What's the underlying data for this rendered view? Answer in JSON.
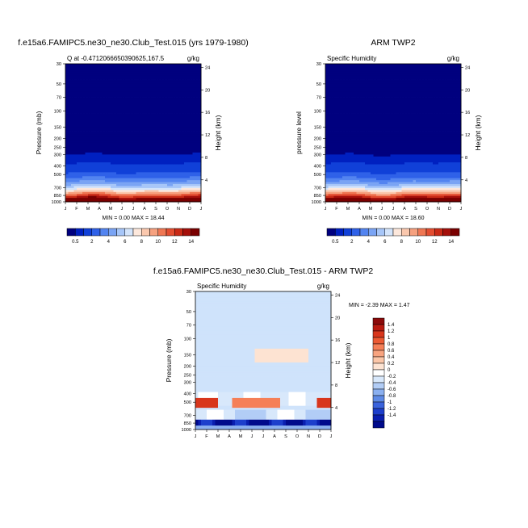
{
  "months": [
    "J",
    "F",
    "M",
    "A",
    "M",
    "J",
    "J",
    "A",
    "S",
    "O",
    "N",
    "D",
    "J"
  ],
  "chart_data": [
    {
      "type": "heatmap",
      "title": "f.e15a6.FAMIPC5.ne30_ne30.Club_Test.015 (yrs 1979-1980)",
      "subtitle_left": "Q at -0.4712066650390625,167.5",
      "units": "g/kg",
      "ylabel": "Pressure (mb)",
      "y2label": "Height (km)",
      "yticks": [
        "30",
        "50",
        "70",
        "100",
        "150",
        "200",
        "250",
        "300",
        "400",
        "500",
        "700",
        "850",
        "1000"
      ],
      "y2ticks": [
        "24",
        "20",
        "16",
        "12",
        "8",
        "4"
      ],
      "minmax": "MIN =   0.00 MAX =  18.44",
      "colorbar_labels": [
        "0.5",
        "2",
        "4",
        "6",
        "8",
        "10",
        "12",
        "14"
      ],
      "levels": [
        0.5,
        1,
        2,
        3,
        4,
        5,
        6,
        7,
        8,
        9,
        10,
        11,
        12,
        13,
        14
      ],
      "colors": [
        "#00007f",
        "#0020c0",
        "#1040d8",
        "#2f61e8",
        "#5384f0",
        "#7aa4f4",
        "#a7c6f8",
        "#d3e4fb",
        "#fde8dc",
        "#fac8ae",
        "#f6a17f",
        "#ef7753",
        "#e34d30",
        "#c92a16",
        "#a50f0a",
        "#7a0000"
      ]
    },
    {
      "type": "heatmap",
      "title": "ARM TWP2",
      "subtitle_left": "Specific Humidity",
      "units": "g/kg",
      "ylabel": "pressure level",
      "y2label": "Height (km)",
      "yticks": [
        "30",
        "50",
        "70",
        "100",
        "150",
        "200",
        "250",
        "300",
        "400",
        "500",
        "700",
        "850",
        "1000"
      ],
      "y2ticks": [
        "24",
        "20",
        "16",
        "12",
        "8",
        "4"
      ],
      "minmax": "MIN =   0.00 MAX =  18.60",
      "colorbar_labels": [
        "0.5",
        "2",
        "4",
        "6",
        "8",
        "10",
        "12",
        "14"
      ]
    },
    {
      "type": "heatmap",
      "title": "f.e15a6.FAMIPC5.ne30_ne30.Club_Test.015 - ARM TWP2",
      "subtitle_left": "Specific Humidity",
      "units": "g/kg",
      "ylabel": "Pressure (mb)",
      "y2label": "Height (km)",
      "yticks": [
        "30",
        "50",
        "70",
        "100",
        "150",
        "200",
        "250",
        "300",
        "400",
        "500",
        "700",
        "850",
        "1000"
      ],
      "y2ticks": [
        "24",
        "20",
        "16",
        "12",
        "8",
        "4"
      ],
      "minmax": "MIN =  -2.39 MAX =   1.47",
      "colorbar_labels": [
        "1.4",
        "1.2",
        "1",
        "0.8",
        "0.6",
        "0.4",
        "0.2",
        "0",
        "-0.2",
        "-0.4",
        "-0.6",
        "-0.8",
        "-1",
        "-1.2",
        "-1.4"
      ],
      "colors": [
        "#8b0a0a",
        "#b81a10",
        "#d8361c",
        "#ec5a33",
        "#f57f57",
        "#f8a480",
        "#fbc6a8",
        "#fde3d2",
        "#ffffff",
        "#d8e8fb",
        "#b2cdf6",
        "#8bb0f0",
        "#5f8be6",
        "#3a63dc",
        "#1d3fcc",
        "#0a1fb0",
        "#000a8c"
      ],
      "diff_background": "#cfe3fb"
    }
  ]
}
